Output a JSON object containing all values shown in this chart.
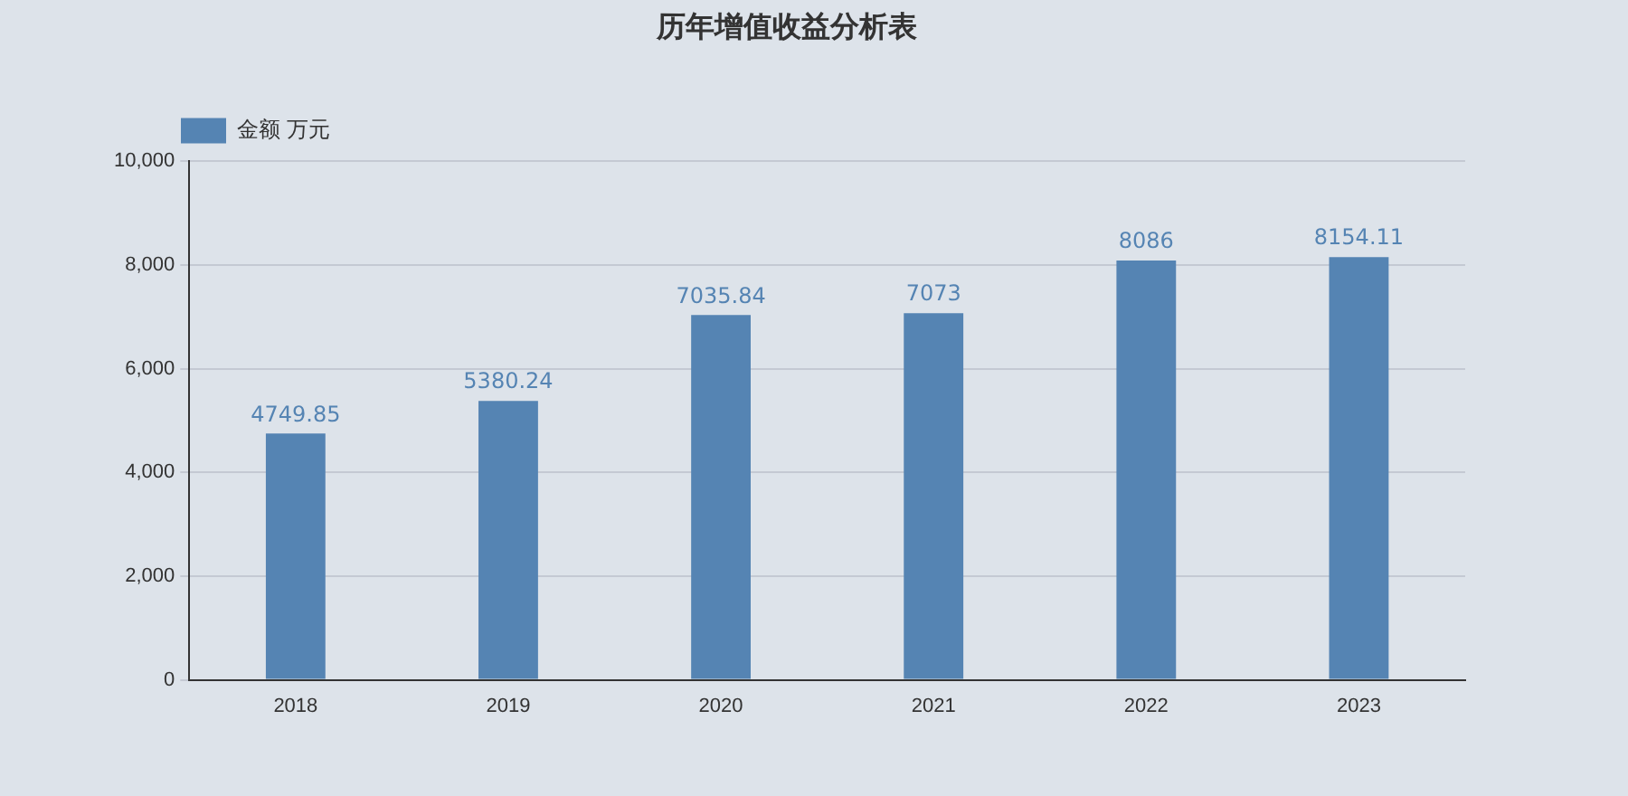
{
  "chart_data": {
    "type": "bar",
    "title": "历年增值收益分析表",
    "categories": [
      "2018",
      "2019",
      "2020",
      "2021",
      "2022",
      "2023"
    ],
    "series": [
      {
        "name": "金额 万元",
        "color": "#5584b3",
        "values": [
          4749.85,
          5380.24,
          7035.84,
          7073,
          8086,
          8154.11
        ]
      }
    ],
    "ylim": [
      0,
      10000
    ],
    "yticks": [
      0,
      {
        "value": 2000,
        "label": "2,000"
      },
      {
        "value": 4000,
        "label": "4,000"
      },
      {
        "value": 6000,
        "label": "6,000"
      },
      {
        "value": 8000,
        "label": "8,000"
      },
      {
        "value": 10000,
        "label": "10,000"
      }
    ],
    "grid": "y",
    "legend": "top left",
    "data_labels": true
  }
}
